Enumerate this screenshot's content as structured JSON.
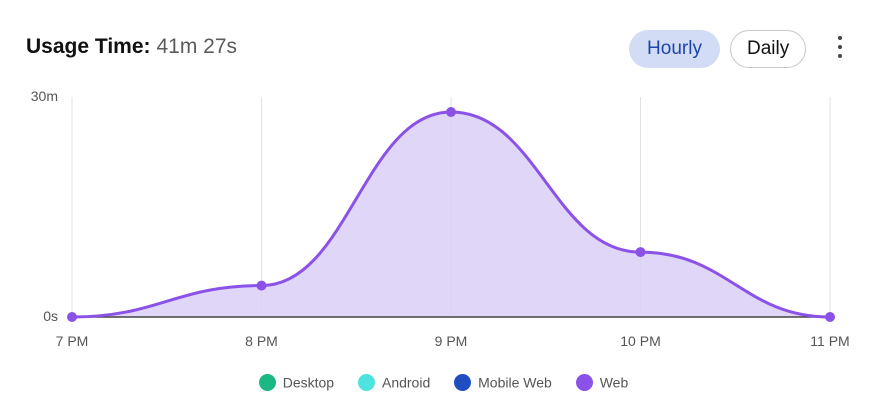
{
  "header": {
    "title_label": "Usage Time:",
    "title_value": "41m 27s",
    "buttons": {
      "hourly": "Hourly",
      "daily": "Daily"
    },
    "more_icon": "vertical-dots-icon"
  },
  "colors": {
    "desktop": "#1cb884",
    "android": "#4fe3e0",
    "mobile_web": "#1f4ec1",
    "web": "#8b52e8",
    "web_fill": "#dcd2f7",
    "active_button_bg": "#d2dcf5"
  },
  "chart_data": {
    "type": "area",
    "categories": [
      "7 PM",
      "8 PM",
      "9 PM",
      "10 PM",
      "11 PM"
    ],
    "y_ticks": [
      "0s",
      "30m"
    ],
    "ylim": [
      0,
      30
    ],
    "y_unit": "minutes",
    "series": [
      {
        "name": "Desktop",
        "values": [
          0,
          0,
          0,
          0,
          0
        ]
      },
      {
        "name": "Android",
        "values": [
          0,
          0,
          0,
          0,
          0
        ]
      },
      {
        "name": "Mobile Web",
        "values": [
          0,
          0,
          0,
          0,
          0
        ]
      },
      {
        "name": "Web",
        "values": [
          0,
          4.6,
          30,
          9.5,
          0
        ]
      }
    ],
    "legend_position": "bottom",
    "grid": "vertical"
  }
}
